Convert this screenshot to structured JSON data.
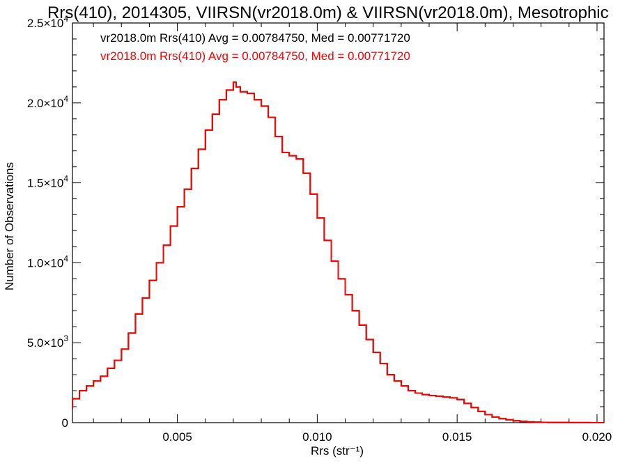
{
  "chart_data": {
    "type": "line",
    "title": "Rrs(410), 2014305, VIIRSN(vr2018.0m) & VIIRSN(vr2018.0m), Mesotrophic",
    "xlabel": "Rrs (str⁻¹)",
    "ylabel": "Number of Observations",
    "xlim": [
      0.00125,
      0.02025
    ],
    "ylim": [
      0,
      25000
    ],
    "x_ticks": [
      {
        "value": 0.005,
        "label": "0.005"
      },
      {
        "value": 0.01,
        "label": "0.010"
      },
      {
        "value": 0.015,
        "label": "0.015"
      },
      {
        "value": 0.02,
        "label": "0.020"
      }
    ],
    "y_ticks": [
      {
        "value": 0,
        "mant": "0",
        "exp": ""
      },
      {
        "value": 5000,
        "mant": "5.0×10",
        "exp": "3"
      },
      {
        "value": 10000,
        "mant": "1.0×10",
        "exp": "4"
      },
      {
        "value": 15000,
        "mant": "1.5×10",
        "exp": "4"
      },
      {
        "value": 20000,
        "mant": "2.0×10",
        "exp": "4"
      },
      {
        "value": 25000,
        "mant": "2.5×10",
        "exp": "4"
      }
    ],
    "grid": false,
    "legend_position": "top-left",
    "series": [
      {
        "name": "vr2018.0m Rrs(410) Avg = 0.00784750, Med = 0.00771720",
        "color": "#000000",
        "x": [
          0.00125,
          0.0015,
          0.00175,
          0.002,
          0.00225,
          0.0025,
          0.00275,
          0.003,
          0.00325,
          0.0035,
          0.00375,
          0.004,
          0.00425,
          0.0045,
          0.00475,
          0.005,
          0.00525,
          0.0055,
          0.00575,
          0.006,
          0.00625,
          0.0065,
          0.00675,
          0.007,
          0.0071,
          0.00725,
          0.0075,
          0.00775,
          0.008,
          0.00825,
          0.0085,
          0.00875,
          0.009,
          0.00925,
          0.0095,
          0.00975,
          0.01,
          0.01025,
          0.0105,
          0.01075,
          0.011,
          0.01125,
          0.0115,
          0.01175,
          0.012,
          0.01225,
          0.0125,
          0.01275,
          0.013,
          0.01325,
          0.0135,
          0.01375,
          0.014,
          0.01425,
          0.0145,
          0.01475,
          0.015,
          0.01525,
          0.0155,
          0.01575,
          0.016,
          0.01625,
          0.0165,
          0.01675,
          0.017,
          0.01725,
          0.0175,
          0.01775,
          0.018,
          0.01825,
          0.0185,
          0.01875,
          0.019,
          0.01925,
          0.0195,
          0.01975,
          0.02,
          0.02025
        ],
        "y": [
          900,
          1500,
          2000,
          2300,
          2600,
          2900,
          3400,
          3900,
          4600,
          5600,
          6800,
          7800,
          8900,
          10000,
          11100,
          12300,
          13500,
          14600,
          15900,
          17100,
          18300,
          19300,
          20200,
          20800,
          21300,
          21000,
          20700,
          20600,
          20200,
          19800,
          19100,
          17900,
          16900,
          16700,
          16500,
          15600,
          14300,
          12800,
          11400,
          10100,
          9000,
          8000,
          7000,
          6100,
          5200,
          4400,
          3700,
          3000,
          2600,
          2300,
          2000,
          1850,
          1750,
          1700,
          1650,
          1600,
          1550,
          1450,
          1200,
          950,
          700,
          500,
          350,
          250,
          180,
          120,
          80,
          50,
          30,
          20,
          15,
          10,
          8,
          6,
          5,
          3,
          2,
          1
        ]
      },
      {
        "name": "vr2018.0m Rrs(410) Avg = 0.00784750, Med = 0.00771720",
        "color": "#ff0000",
        "x": [
          0.00125,
          0.0015,
          0.00175,
          0.002,
          0.00225,
          0.0025,
          0.00275,
          0.003,
          0.00325,
          0.0035,
          0.00375,
          0.004,
          0.00425,
          0.0045,
          0.00475,
          0.005,
          0.00525,
          0.0055,
          0.00575,
          0.006,
          0.00625,
          0.0065,
          0.00675,
          0.007,
          0.0071,
          0.00725,
          0.0075,
          0.00775,
          0.008,
          0.00825,
          0.0085,
          0.00875,
          0.009,
          0.00925,
          0.0095,
          0.00975,
          0.01,
          0.01025,
          0.0105,
          0.01075,
          0.011,
          0.01125,
          0.0115,
          0.01175,
          0.012,
          0.01225,
          0.0125,
          0.01275,
          0.013,
          0.01325,
          0.0135,
          0.01375,
          0.014,
          0.01425,
          0.0145,
          0.01475,
          0.015,
          0.01525,
          0.0155,
          0.01575,
          0.016,
          0.01625,
          0.0165,
          0.01675,
          0.017,
          0.01725,
          0.0175,
          0.01775,
          0.018,
          0.01825,
          0.0185,
          0.01875,
          0.019,
          0.01925,
          0.0195,
          0.01975,
          0.02,
          0.02025
        ],
        "y": [
          900,
          1500,
          2000,
          2300,
          2600,
          2900,
          3400,
          3900,
          4600,
          5600,
          6800,
          7800,
          8900,
          10000,
          11100,
          12300,
          13500,
          14600,
          15900,
          17100,
          18300,
          19300,
          20200,
          20800,
          21300,
          21000,
          20700,
          20600,
          20200,
          19800,
          19100,
          17900,
          16900,
          16700,
          16500,
          15600,
          14300,
          12800,
          11400,
          10100,
          9000,
          8000,
          7000,
          6100,
          5200,
          4400,
          3700,
          3000,
          2600,
          2300,
          2000,
          1850,
          1750,
          1700,
          1650,
          1600,
          1550,
          1450,
          1200,
          950,
          700,
          500,
          350,
          250,
          180,
          120,
          80,
          50,
          30,
          20,
          15,
          10,
          8,
          6,
          5,
          3,
          2,
          1
        ]
      }
    ]
  }
}
